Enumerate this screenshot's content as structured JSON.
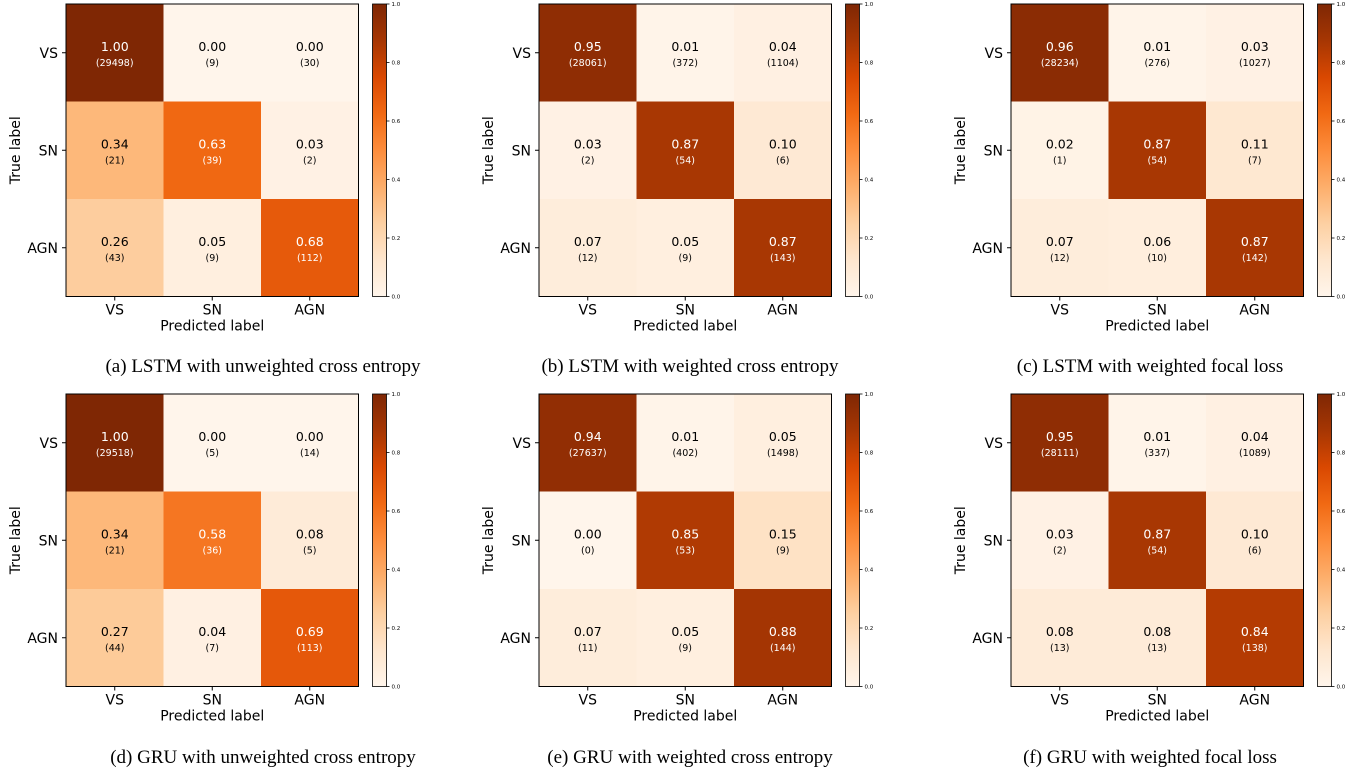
{
  "figure": {
    "row_labels": [
      "VS",
      "SN",
      "AGN"
    ],
    "col_labels": [
      "VS",
      "SN",
      "AGN"
    ],
    "xlabel": "Predicted label",
    "ylabel": "True label",
    "colorbar_ticks": [
      "0.0",
      "0.2",
      "0.4",
      "0.6",
      "0.8",
      "1.0"
    ],
    "colormap": [
      "#fff5eb",
      "#fee6ce",
      "#fdd0a2",
      "#fdae6b",
      "#fd8d3c",
      "#f16913",
      "#d94801",
      "#a63603",
      "#7f2704"
    ]
  },
  "chart_data": [
    {
      "type": "heatmap",
      "caption": "(a) LSTM with unweighted cross entropy",
      "values": [
        [
          1.0,
          0.0,
          0.0
        ],
        [
          0.34,
          0.63,
          0.03
        ],
        [
          0.26,
          0.05,
          0.68
        ]
      ],
      "counts": [
        [
          29498,
          9,
          30
        ],
        [
          21,
          39,
          2
        ],
        [
          43,
          9,
          112
        ]
      ]
    },
    {
      "type": "heatmap",
      "caption": "(b) LSTM with weighted cross entropy",
      "values": [
        [
          0.95,
          0.01,
          0.04
        ],
        [
          0.03,
          0.87,
          0.1
        ],
        [
          0.07,
          0.05,
          0.87
        ]
      ],
      "counts": [
        [
          28061,
          372,
          1104
        ],
        [
          2,
          54,
          6
        ],
        [
          12,
          9,
          143
        ]
      ]
    },
    {
      "type": "heatmap",
      "caption": "(c) LSTM with weighted focal loss",
      "values": [
        [
          0.96,
          0.01,
          0.03
        ],
        [
          0.02,
          0.87,
          0.11
        ],
        [
          0.07,
          0.06,
          0.87
        ]
      ],
      "counts": [
        [
          28234,
          276,
          1027
        ],
        [
          1,
          54,
          7
        ],
        [
          12,
          10,
          142
        ]
      ]
    },
    {
      "type": "heatmap",
      "caption": "(d) GRU with unweighted cross entropy",
      "values": [
        [
          1.0,
          0.0,
          0.0
        ],
        [
          0.34,
          0.58,
          0.08
        ],
        [
          0.27,
          0.04,
          0.69
        ]
      ],
      "counts": [
        [
          29518,
          5,
          14
        ],
        [
          21,
          36,
          5
        ],
        [
          44,
          7,
          113
        ]
      ]
    },
    {
      "type": "heatmap",
      "caption": "(e) GRU with weighted cross entropy",
      "values": [
        [
          0.94,
          0.01,
          0.05
        ],
        [
          0.0,
          0.85,
          0.15
        ],
        [
          0.07,
          0.05,
          0.88
        ]
      ],
      "counts": [
        [
          27637,
          402,
          1498
        ],
        [
          0,
          53,
          9
        ],
        [
          11,
          9,
          144
        ]
      ]
    },
    {
      "type": "heatmap",
      "caption": "(f) GRU with weighted focal loss",
      "values": [
        [
          0.95,
          0.01,
          0.04
        ],
        [
          0.03,
          0.87,
          0.1
        ],
        [
          0.08,
          0.08,
          0.84
        ]
      ],
      "counts": [
        [
          28111,
          337,
          1089
        ],
        [
          2,
          54,
          6
        ],
        [
          13,
          13,
          138
        ]
      ]
    }
  ]
}
